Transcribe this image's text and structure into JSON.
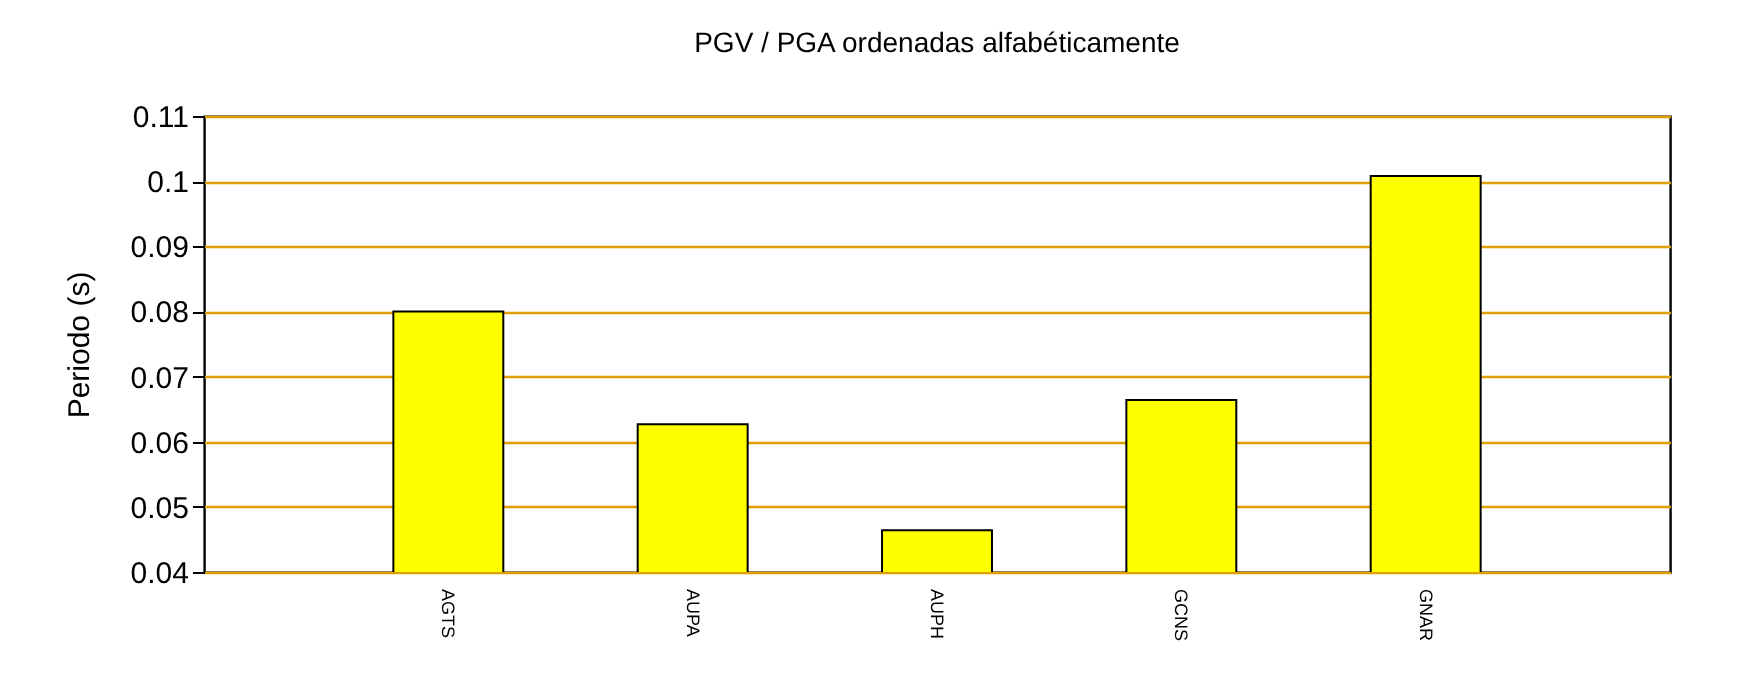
{
  "chart_data": {
    "type": "bar",
    "title": "PGV / PGA ordenadas alfabéticamente",
    "ylabel": "Periodo (s)",
    "categories": [
      "AGTS",
      "AUPA",
      "AUPH",
      "GCNS",
      "GNAR"
    ],
    "values": [
      0.08,
      0.0627,
      0.0464,
      0.0664,
      0.1008
    ],
    "color": "#ffff00",
    "ylim": [
      0.04,
      0.11
    ],
    "yticks": [
      0.04,
      0.05,
      0.06,
      0.07,
      0.08,
      0.09,
      0.1,
      0.11
    ],
    "grid": "y"
  }
}
